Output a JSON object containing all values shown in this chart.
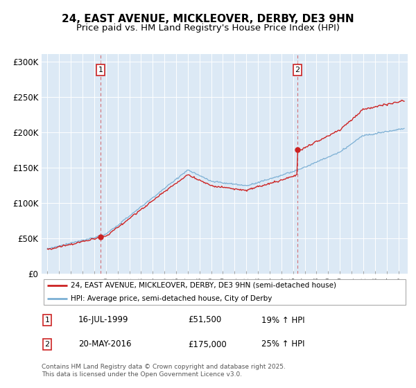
{
  "title": "24, EAST AVENUE, MICKLEOVER, DERBY, DE3 9HN",
  "subtitle": "Price paid vs. HM Land Registry's House Price Index (HPI)",
  "legend_line1": "24, EAST AVENUE, MICKLEOVER, DERBY, DE3 9HN (semi-detached house)",
  "legend_line2": "HPI: Average price, semi-detached house, City of Derby",
  "annotation1_label": "1",
  "annotation1_date": "16-JUL-1999",
  "annotation1_price": "£51,500",
  "annotation1_hpi": "19% ↑ HPI",
  "annotation2_label": "2",
  "annotation2_date": "20-MAY-2016",
  "annotation2_price": "£175,000",
  "annotation2_hpi": "25% ↑ HPI",
  "footer": "Contains HM Land Registry data © Crown copyright and database right 2025.\nThis data is licensed under the Open Government Licence v3.0.",
  "sale1_x": 1999.54,
  "sale1_y": 51500,
  "sale2_x": 2016.38,
  "sale2_y": 175000,
  "hpi_color": "#7bafd4",
  "price_color": "#cc2222",
  "plot_bg": "#dce9f5",
  "ylim": [
    0,
    310000
  ],
  "xlim_start": 1994.5,
  "xlim_end": 2025.8,
  "yticks": [
    0,
    50000,
    100000,
    150000,
    200000,
    250000,
    300000
  ],
  "ytick_labels": [
    "£0",
    "£50K",
    "£100K",
    "£150K",
    "£200K",
    "£250K",
    "£300K"
  ],
  "xticks": [
    1995,
    1996,
    1997,
    1998,
    1999,
    2000,
    2001,
    2002,
    2003,
    2004,
    2005,
    2006,
    2007,
    2008,
    2009,
    2010,
    2011,
    2012,
    2013,
    2014,
    2015,
    2016,
    2017,
    2018,
    2019,
    2020,
    2021,
    2022,
    2023,
    2024,
    2025
  ],
  "title_fontsize": 11,
  "subtitle_fontsize": 9.5
}
